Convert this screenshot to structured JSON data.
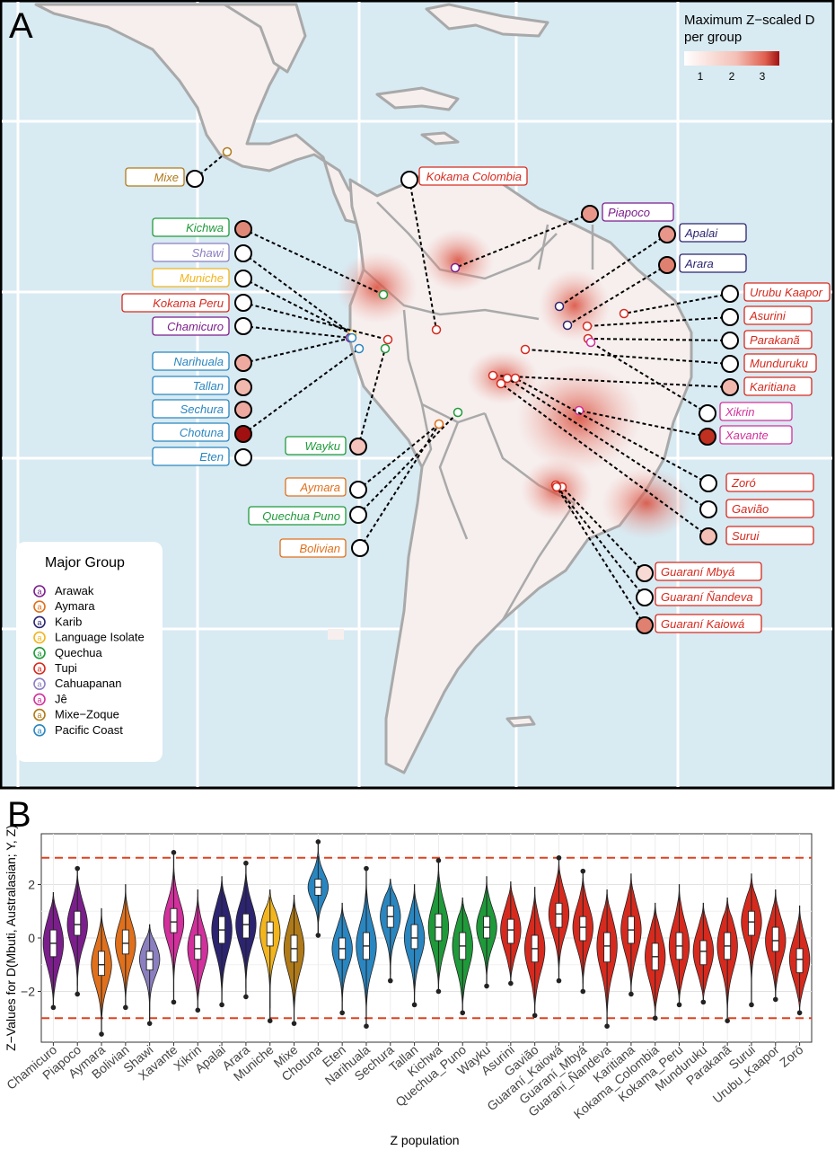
{
  "panelA": {
    "letter": "A",
    "legend_title_1": "Maximum Z−scaled D",
    "legend_title_2": "per group",
    "scale_ticks": [
      "1",
      "2",
      "3"
    ],
    "major_group_title": "Major Group",
    "groups": [
      {
        "name": "Arawak",
        "color": "#7b1e8c"
      },
      {
        "name": "Aymara",
        "color": "#e0701c"
      },
      {
        "name": "Karib",
        "color": "#2c2470"
      },
      {
        "name": "Language Isolate",
        "color": "#f2b51e"
      },
      {
        "name": "Quechua",
        "color": "#1f9a3a"
      },
      {
        "name": "Tupi",
        "color": "#d62a1e"
      },
      {
        "name": "Cahuapanan",
        "color": "#8b7fc0"
      },
      {
        "name": "Jê",
        "color": "#d2309c"
      },
      {
        "name": "Mixe−Zoque",
        "color": "#b07a18"
      },
      {
        "name": "Pacific Coast",
        "color": "#2a86c0"
      }
    ],
    "left_labels": [
      {
        "name": "Mixe",
        "group": 8,
        "fill": "#ffffff"
      },
      {
        "name": "Kichwa",
        "group": 4,
        "fill": "#e08878"
      },
      {
        "name": "Shawi",
        "group": 6,
        "fill": "#ffffff"
      },
      {
        "name": "Muniche",
        "group": 3,
        "fill": "#ffffff"
      },
      {
        "name": "Kokama Peru",
        "group": 5,
        "fill": "#ffffff"
      },
      {
        "name": "Chamicuro",
        "group": 0,
        "fill": "#ffffff"
      },
      {
        "name": "Narihuala",
        "group": 9,
        "fill": "#eeaaa0"
      },
      {
        "name": "Tallan",
        "group": 9,
        "fill": "#f1b8ae"
      },
      {
        "name": "Sechura",
        "group": 9,
        "fill": "#eeaaa0"
      },
      {
        "name": "Chotuna",
        "group": 9,
        "fill": "#a01010"
      },
      {
        "name": "Eten",
        "group": 9,
        "fill": "#ffffff"
      },
      {
        "name": "Wayku",
        "group": 4,
        "fill": "#f4c4bc"
      },
      {
        "name": "Aymara",
        "group": 1,
        "fill": "#ffffff"
      },
      {
        "name": "Quechua Puno",
        "group": 4,
        "fill": "#ffffff"
      },
      {
        "name": "Bolivian",
        "group": 1,
        "fill": "#ffffff"
      },
      {
        "name": "Kokama Colombia",
        "group": 5,
        "fill": "#ffffff"
      }
    ],
    "right_labels": [
      {
        "name": "Piapoco",
        "group": 0,
        "fill": "#e8968a"
      },
      {
        "name": "Apalai",
        "group": 2,
        "fill": "#e8968a"
      },
      {
        "name": "Arara",
        "group": 2,
        "fill": "#e08070"
      },
      {
        "name": "Urubu Kaapor",
        "group": 5,
        "fill": "#ffffff"
      },
      {
        "name": "Asurini",
        "group": 5,
        "fill": "#ffffff"
      },
      {
        "name": "Parakanã",
        "group": 5,
        "fill": "#ffffff"
      },
      {
        "name": "Munduruku",
        "group": 5,
        "fill": "#ffffff"
      },
      {
        "name": "Karitiana",
        "group": 5,
        "fill": "#f1b8ae"
      },
      {
        "name": "Xikrin",
        "group": 7,
        "fill": "#ffffff"
      },
      {
        "name": "Xavante",
        "group": 7,
        "fill": "#c03020"
      },
      {
        "name": "Zoró",
        "group": 5,
        "fill": "#ffffff"
      },
      {
        "name": "Gavião",
        "group": 5,
        "fill": "#ffffff"
      },
      {
        "name": "Surui",
        "group": 5,
        "fill": "#f4c0b6"
      },
      {
        "name": "Guaraní  Mbyá",
        "group": 5,
        "fill": "#f8dad4"
      },
      {
        "name": "Guaraní  Ñandeva",
        "group": 5,
        "fill": "#ffffff"
      },
      {
        "name": "Guaraní  Kaiowá",
        "group": 5,
        "fill": "#e08070"
      }
    ]
  },
  "panelB": {
    "letter": "B"
  },
  "chart_data": {
    "type": "violin",
    "xlabel": "Z population",
    "ylabel": "Z−Values for D(Mbuti, Australasian; Y, Z)",
    "ylim": [
      -3.9,
      3.9
    ],
    "yticks": [
      -2,
      0,
      2
    ],
    "reference_lines": [
      -3,
      3
    ],
    "categories": [
      "Chamicuro",
      "Piapoco",
      "Aymara",
      "Bolivian",
      "Shawi",
      "Xavante",
      "Xikrin",
      "Apalai",
      "Arara",
      "Muniche",
      "Mixe",
      "Chotuna",
      "Eten",
      "Narihuala",
      "Sechura",
      "Tallan",
      "Kichwa",
      "Quechua_Puno",
      "Wayku",
      "Asurini",
      "Gavião",
      "Guaraní_Kaiowá",
      "Guaraní_Mbyá",
      "Guaraní_Ñandeva",
      "Karitiana",
      "Kokama_Colombia",
      "Kokama_Peru",
      "Munduruku",
      "Parakanã",
      "Surui",
      "Urubu_Kaapor",
      "Zoró"
    ],
    "colors": [
      "#7b1e8c",
      "#7b1e8c",
      "#e0701c",
      "#e0701c",
      "#8b7fc0",
      "#d2309c",
      "#d2309c",
      "#2c2470",
      "#2c2470",
      "#f2b51e",
      "#b07a18",
      "#2a86c0",
      "#2a86c0",
      "#2a86c0",
      "#2a86c0",
      "#2a86c0",
      "#1f9a3a",
      "#1f9a3a",
      "#1f9a3a",
      "#d62a1e",
      "#d62a1e",
      "#d62a1e",
      "#d62a1e",
      "#d62a1e",
      "#d62a1e",
      "#d62a1e",
      "#d62a1e",
      "#d62a1e",
      "#d62a1e",
      "#d62a1e",
      "#d62a1e",
      "#d62a1e"
    ],
    "series": [
      {
        "min": -2.6,
        "max": 1.7,
        "q1": -0.7,
        "med": -0.2,
        "q3": 0.3
      },
      {
        "min": -2.1,
        "max": 2.6,
        "q1": 0.1,
        "med": 0.5,
        "q3": 1.0
      },
      {
        "min": -3.6,
        "max": 1.1,
        "q1": -1.4,
        "med": -1.0,
        "q3": -0.5
      },
      {
        "min": -2.6,
        "max": 2.0,
        "q1": -0.6,
        "med": -0.2,
        "q3": 0.3
      },
      {
        "min": -3.2,
        "max": 0.5,
        "q1": -1.2,
        "med": -0.8,
        "q3": -0.5
      },
      {
        "min": -2.4,
        "max": 3.2,
        "q1": 0.2,
        "med": 0.6,
        "q3": 1.1
      },
      {
        "min": -2.7,
        "max": 1.8,
        "q1": -0.8,
        "med": -0.4,
        "q3": 0.1
      },
      {
        "min": -2.5,
        "max": 2.3,
        "q1": -0.2,
        "med": 0.3,
        "q3": 0.8
      },
      {
        "min": -2.2,
        "max": 2.8,
        "q1": 0.0,
        "med": 0.5,
        "q3": 0.9
      },
      {
        "min": -3.1,
        "max": 1.8,
        "q1": -0.3,
        "med": 0.2,
        "q3": 0.6
      },
      {
        "min": -3.2,
        "max": 1.6,
        "q1": -0.9,
        "med": -0.4,
        "q3": 0.1
      },
      {
        "min": 0.1,
        "max": 3.6,
        "q1": 1.6,
        "med": 1.9,
        "q3": 2.2
      },
      {
        "min": -2.8,
        "max": 1.3,
        "q1": -0.8,
        "med": -0.4,
        "q3": 0.0
      },
      {
        "min": -3.3,
        "max": 2.6,
        "q1": -0.8,
        "med": -0.3,
        "q3": 0.2
      },
      {
        "min": -1.6,
        "max": 2.2,
        "q1": 0.4,
        "med": 0.8,
        "q3": 1.2
      },
      {
        "min": -2.5,
        "max": 2.0,
        "q1": -0.4,
        "med": 0.0,
        "q3": 0.5
      },
      {
        "min": -2.0,
        "max": 2.9,
        "q1": -0.1,
        "med": 0.4,
        "q3": 0.9
      },
      {
        "min": -2.8,
        "max": 1.5,
        "q1": -0.8,
        "med": -0.3,
        "q3": 0.2
      },
      {
        "min": -1.8,
        "max": 2.3,
        "q1": 0.0,
        "med": 0.4,
        "q3": 0.8
      },
      {
        "min": -1.7,
        "max": 2.1,
        "q1": -0.2,
        "med": 0.3,
        "q3": 0.7
      },
      {
        "min": -2.9,
        "max": 1.9,
        "q1": -0.9,
        "med": -0.4,
        "q3": 0.1
      },
      {
        "min": -1.6,
        "max": 3.0,
        "q1": 0.4,
        "med": 0.9,
        "q3": 1.3
      },
      {
        "min": -2.0,
        "max": 2.5,
        "q1": -0.1,
        "med": 0.4,
        "q3": 0.8
      },
      {
        "min": -3.3,
        "max": 1.8,
        "q1": -0.9,
        "med": -0.3,
        "q3": 0.2
      },
      {
        "min": -2.1,
        "max": 2.4,
        "q1": -0.2,
        "med": 0.3,
        "q3": 0.8
      },
      {
        "min": -3.0,
        "max": 1.3,
        "q1": -1.2,
        "med": -0.7,
        "q3": -0.2
      },
      {
        "min": -2.5,
        "max": 2.0,
        "q1": -0.8,
        "med": -0.3,
        "q3": 0.2
      },
      {
        "min": -2.4,
        "max": 1.3,
        "q1": -1.0,
        "med": -0.5,
        "q3": -0.1
      },
      {
        "min": -3.1,
        "max": 1.5,
        "q1": -0.8,
        "med": -0.3,
        "q3": 0.2
      },
      {
        "min": -2.5,
        "max": 2.4,
        "q1": 0.1,
        "med": 0.6,
        "q3": 1.0
      },
      {
        "min": -2.3,
        "max": 1.8,
        "q1": -0.5,
        "med": -0.1,
        "q3": 0.4
      },
      {
        "min": -2.8,
        "max": 1.2,
        "q1": -1.3,
        "med": -0.8,
        "q3": -0.4
      }
    ]
  }
}
